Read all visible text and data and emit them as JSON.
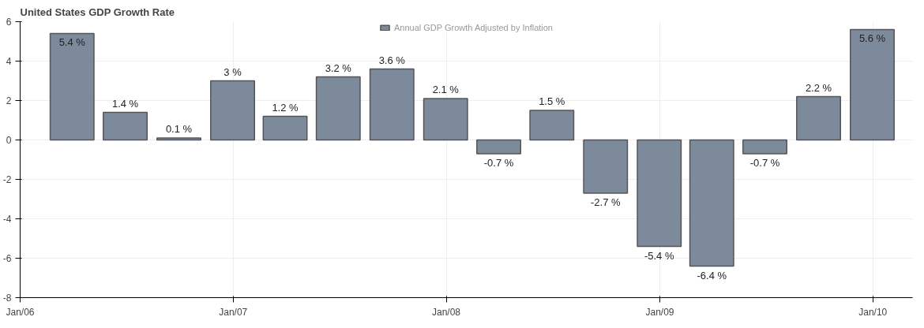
{
  "chart_data": {
    "type": "bar",
    "title": "United States GDP Growth Rate",
    "x": [
      "2006-03-31",
      "2006-06-30",
      "2006-09-30",
      "2006-12-31",
      "2007-03-31",
      "2007-06-30",
      "2007-09-30",
      "2007-12-31",
      "2008-03-31",
      "2008-06-30",
      "2008-09-30",
      "2008-12-31",
      "2009-03-31",
      "2009-06-30",
      "2009-09-30",
      "2009-12-31"
    ],
    "series": [
      {
        "name": "Annual GDP Growth Adjusted by Inflation",
        "color": "#7d8a9c",
        "values": [
          5.4,
          1.4,
          0.1,
          3,
          1.2,
          3.2,
          3.6,
          2.1,
          -0.7,
          1.5,
          -2.7,
          -5.4,
          -6.4,
          -0.7,
          2.2,
          5.6
        ],
        "value_labels": [
          "5.4 %",
          "1.4 %",
          "0.1 %",
          "3 %",
          "1.2 %",
          "3.2 %",
          "3.6 %",
          "2.1 %",
          "-0.7 %",
          "1.5 %",
          "-2.7 %",
          "-5.4 %",
          "-6.4 %",
          "-0.7 %",
          "2.2 %",
          "5.6 %"
        ]
      }
    ],
    "xlim": [
      "2006-01-01",
      "2010-03-10"
    ],
    "xticks": [
      {
        "value": "2006-01-01",
        "label": "Jan/06"
      },
      {
        "value": "2007-01-01",
        "label": "Jan/07"
      },
      {
        "value": "2008-01-01",
        "label": "Jan/08"
      },
      {
        "value": "2009-01-01",
        "label": "Jan/09"
      },
      {
        "value": "2010-01-01",
        "label": "Jan/10"
      }
    ],
    "ylim": [
      -8,
      6
    ],
    "yticks": [
      -8,
      -6,
      -4,
      -2,
      0,
      2,
      4,
      6
    ],
    "grid": true,
    "legend": "top"
  }
}
